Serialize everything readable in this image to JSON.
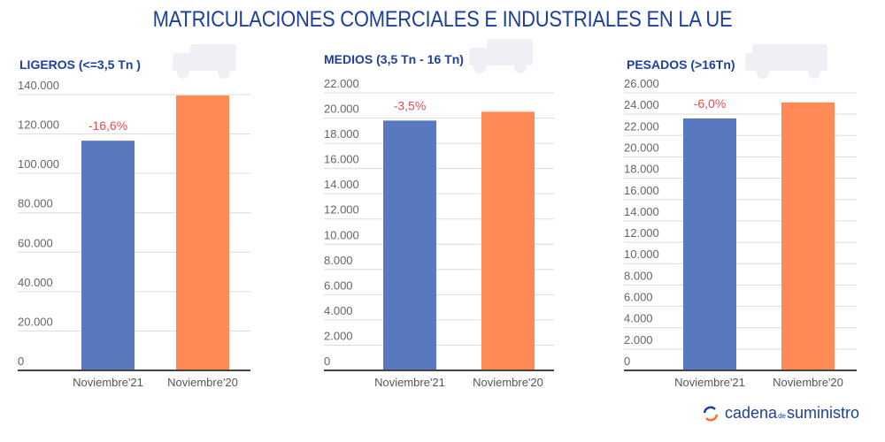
{
  "title": "MATRICULACIONES COMERCIALES E INDUSTRIALES EN LA UE",
  "logo": {
    "part1": "cadena",
    "part2": "de",
    "part3": "suministro"
  },
  "colors": {
    "bar_2021": "#5878c0",
    "bar_2020": "#ff8a55",
    "annotation": "#e05050",
    "title": "#1d3f9e"
  },
  "chart_data": [
    {
      "type": "bar",
      "title": "LIGEROS (<=3,5 Tn )",
      "icon": "van-icon",
      "categories": [
        "Noviembre'21",
        "Noviembre'20"
      ],
      "values": [
        116600,
        139600
      ],
      "annotation": "-16,6%",
      "ylim": [
        0,
        140000
      ],
      "yticks": [
        "0",
        "20.000",
        "40.000",
        "60.000",
        "80.000",
        "100.000",
        "120.000",
        "140.000"
      ],
      "grid": true
    },
    {
      "type": "bar",
      "title": "MEDIOS (3,5 Tn - 16 Tn)",
      "icon": "truck-icon",
      "categories": [
        "Noviembre'21",
        "Noviembre'20"
      ],
      "values": [
        19800,
        20500
      ],
      "annotation": "-3,5%",
      "ylim": [
        0,
        22000
      ],
      "yticks": [
        "0",
        "2.000",
        "4.000",
        "6.000",
        "8.000",
        "10.000",
        "12.000",
        "14.000",
        "16.000",
        "18.000",
        "20.000",
        "22.000"
      ],
      "grid": true
    },
    {
      "type": "bar",
      "title": "PESADOS (>16Tn)",
      "icon": "semi-truck-icon",
      "categories": [
        "Noviembre'21",
        "Noviembre'20"
      ],
      "values": [
        23600,
        25100
      ],
      "annotation": "-6,0%",
      "ylim": [
        0,
        26000
      ],
      "yticks": [
        "0",
        "2.000",
        "4.000",
        "6.000",
        "8.000",
        "10.000",
        "12.000",
        "14.000",
        "16.000",
        "18.000",
        "20.000",
        "22.000",
        "24.000",
        "26.000"
      ],
      "grid": true
    }
  ]
}
